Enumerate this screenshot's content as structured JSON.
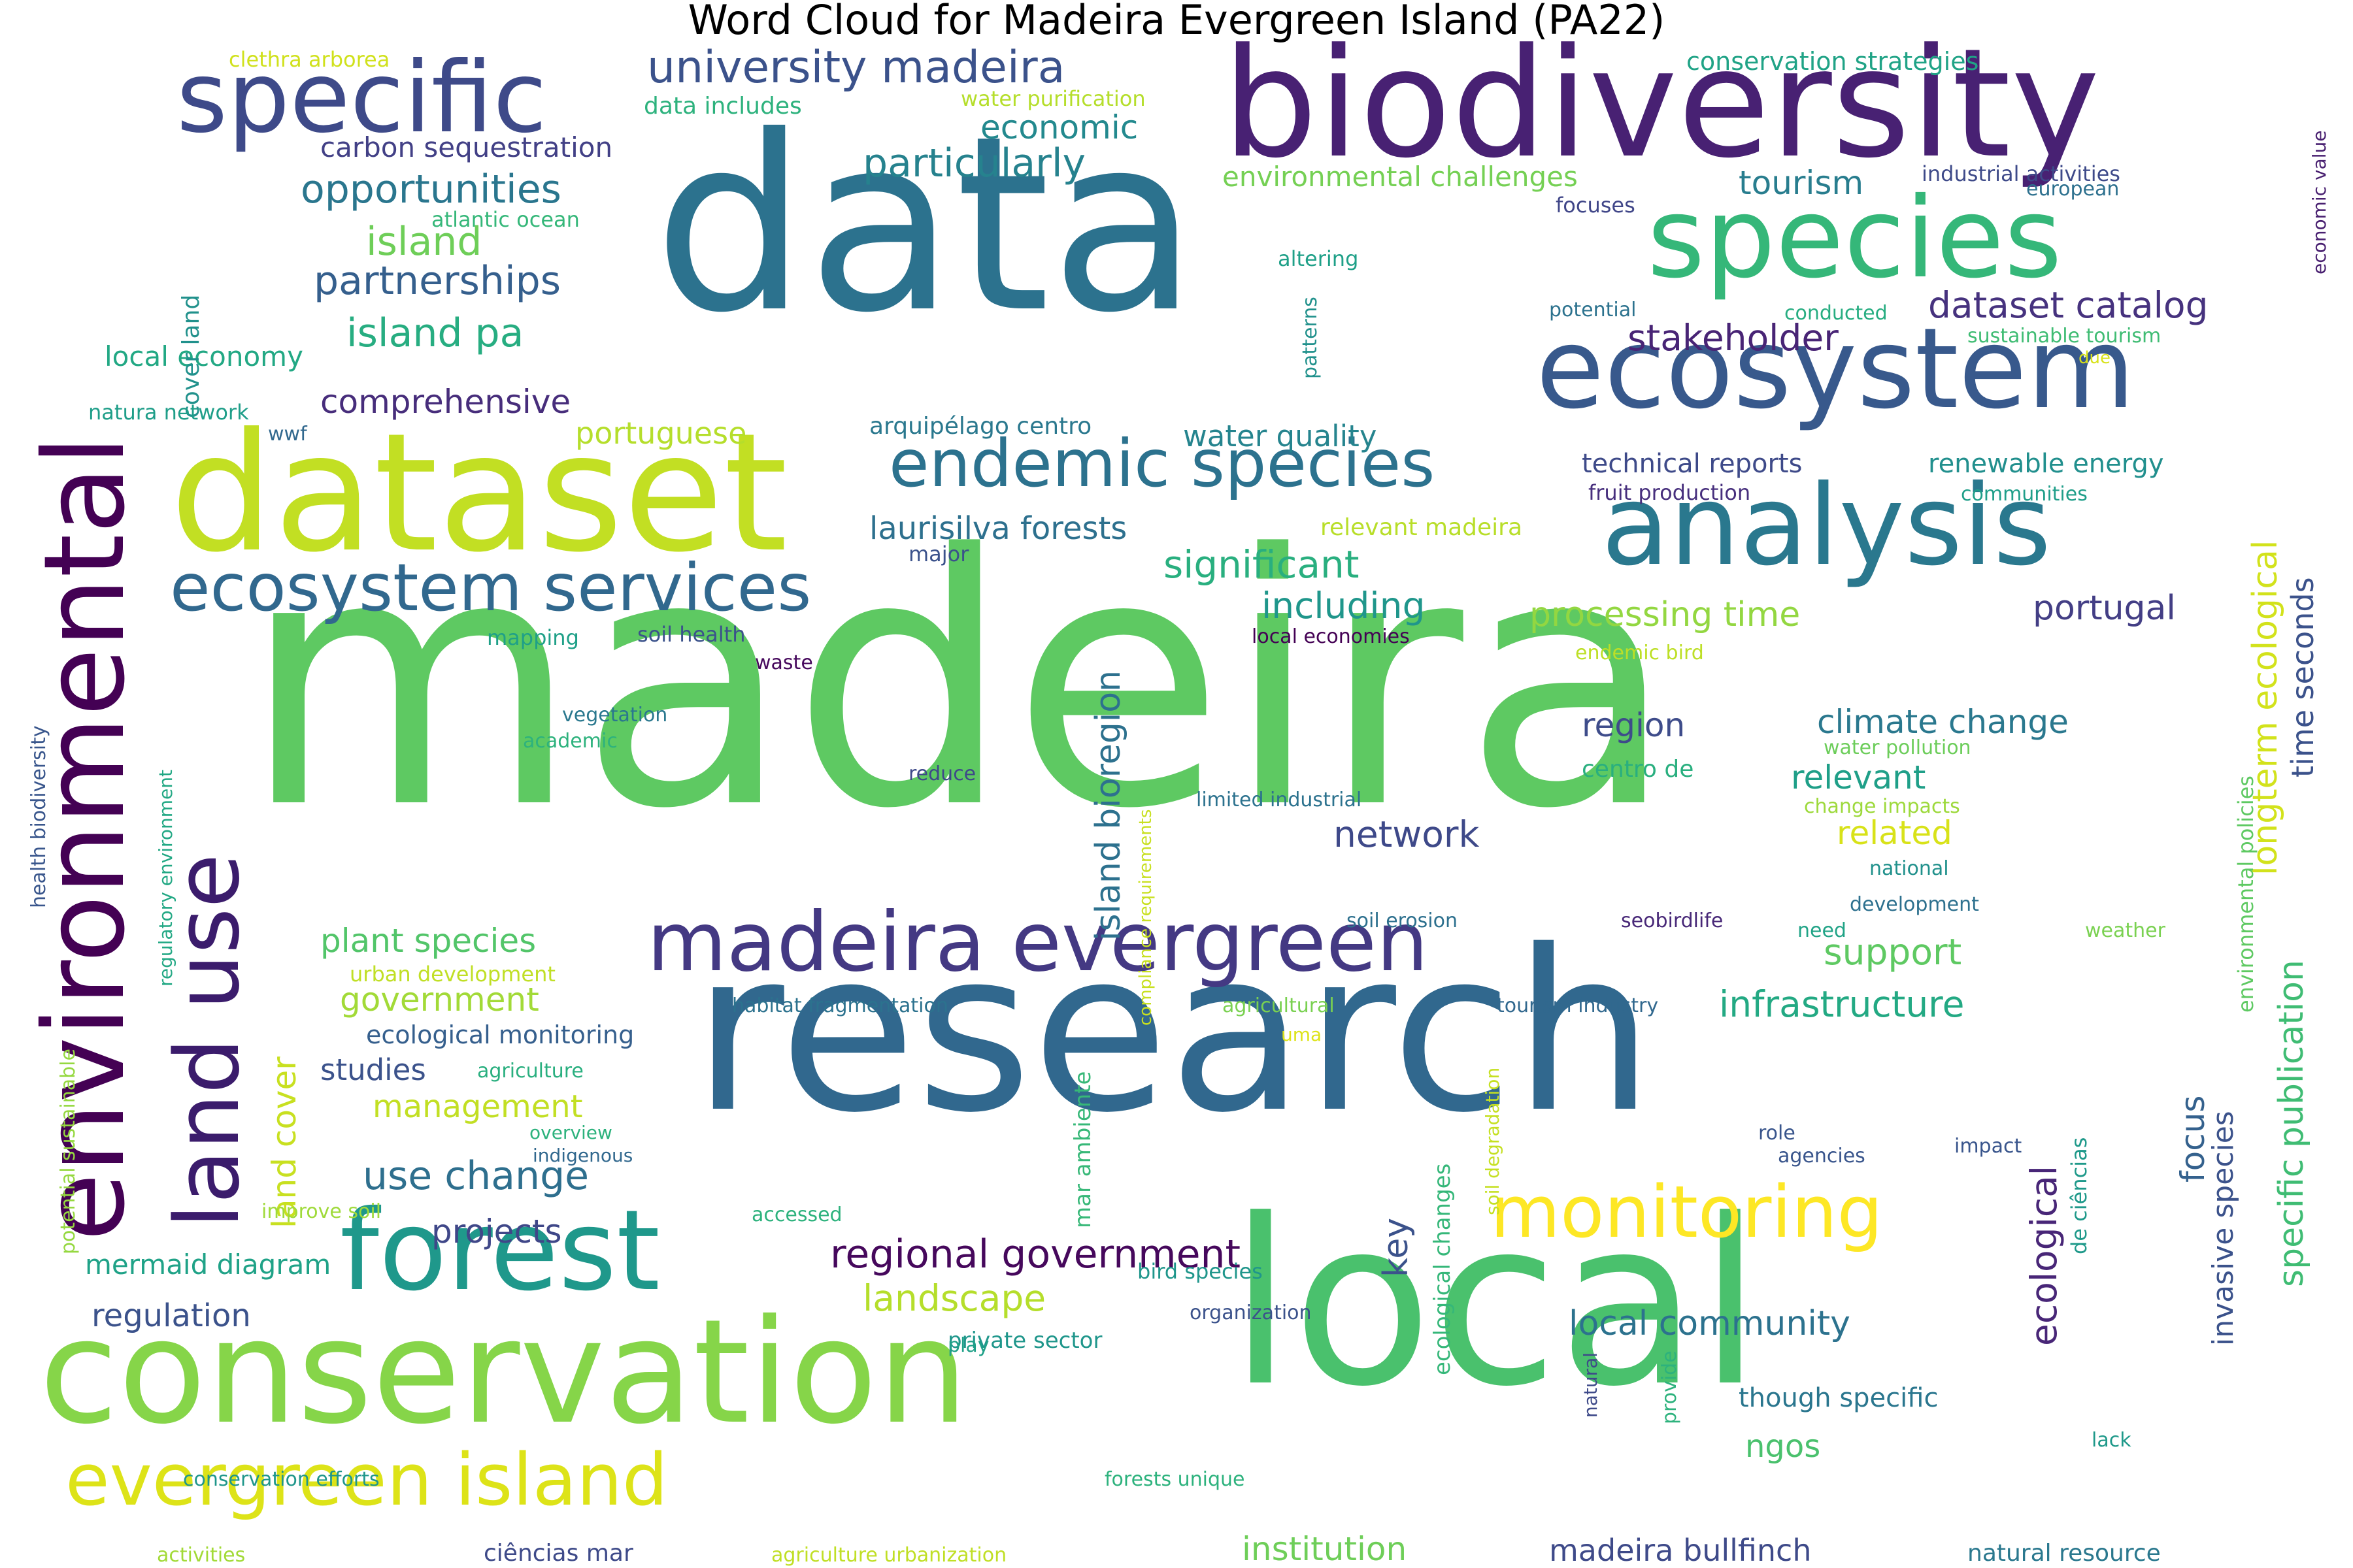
{
  "title": "Word Cloud for Madeira Evergreen Island (PA22)",
  "words": [
    {
      "text": "madeira",
      "color": "#5ec962"
    },
    {
      "text": "data",
      "color": "#2c728e"
    },
    {
      "text": "research",
      "color": "#31688e"
    },
    {
      "text": "local",
      "color": "#4ac16d"
    },
    {
      "text": "biodiversity",
      "color": "#482173"
    },
    {
      "text": "dataset",
      "color": "#c2df23"
    },
    {
      "text": "conservation",
      "color": "#86d549"
    },
    {
      "text": "environmental",
      "color": "#440154"
    },
    {
      "text": "specific",
      "color": "#3e4a89"
    },
    {
      "text": "species",
      "color": "#35b779"
    },
    {
      "text": "ecosystem",
      "color": "#38598c"
    },
    {
      "text": "analysis",
      "color": "#2a788e"
    },
    {
      "text": "forest",
      "color": "#1f988b"
    },
    {
      "text": "land use",
      "color": "#3b1c6c"
    },
    {
      "text": "madeira evergreen",
      "color": "#443983"
    },
    {
      "text": "evergreen island",
      "color": "#dde318"
    },
    {
      "text": "monitoring",
      "color": "#fde725"
    },
    {
      "text": "endemic species",
      "color": "#2c728e"
    },
    {
      "text": "ecosystem services",
      "color": "#31688e"
    },
    {
      "text": "university madeira",
      "color": "#3b528b"
    },
    {
      "text": "opportunities",
      "color": "#2a768e"
    },
    {
      "text": "partnerships",
      "color": "#355f8d"
    },
    {
      "text": "island pa",
      "color": "#27ad81"
    },
    {
      "text": "island",
      "color": "#6ece58"
    },
    {
      "text": "economic",
      "color": "#23898e"
    },
    {
      "text": "particularly",
      "color": "#26828e"
    },
    {
      "text": "tourism",
      "color": "#287d8e"
    },
    {
      "text": "dataset catalog",
      "color": "#46327e"
    },
    {
      "text": "stakeholder",
      "color": "#482475"
    },
    {
      "text": "comprehensive",
      "color": "#472d7b"
    },
    {
      "text": "portuguese",
      "color": "#b5de2b"
    },
    {
      "text": "local economy",
      "color": "#22a884"
    },
    {
      "text": "carbon sequestration",
      "color": "#424086"
    },
    {
      "text": "data includes",
      "color": "#2db27d"
    },
    {
      "text": "clethra arborea",
      "color": "#d0e11c"
    },
    {
      "text": "water purification",
      "color": "#b5de2b"
    },
    {
      "text": "conservation strategies",
      "color": "#20a386"
    },
    {
      "text": "environmental challenges",
      "color": "#75d054"
    },
    {
      "text": "industrial activities",
      "color": "#3e4a89"
    },
    {
      "text": "european",
      "color": "#2d708e"
    },
    {
      "text": "focuses",
      "color": "#404688"
    },
    {
      "text": "atlantic ocean",
      "color": "#35b779"
    },
    {
      "text": "cover land",
      "color": "#21918c"
    },
    {
      "text": "altering",
      "color": "#1fa088"
    },
    {
      "text": "patterns",
      "color": "#21918c"
    },
    {
      "text": "potential",
      "color": "#2c728e"
    },
    {
      "text": "conducted",
      "color": "#27ad81"
    },
    {
      "text": "sustainable tourism",
      "color": "#3fbc73"
    },
    {
      "text": "due",
      "color": "#d8e219"
    },
    {
      "text": "economic value",
      "color": "#481f70"
    },
    {
      "text": "natura network",
      "color": "#1f9e89"
    },
    {
      "text": "wwf",
      "color": "#31688e"
    },
    {
      "text": "arquipélago centro",
      "color": "#2a788e"
    },
    {
      "text": "water quality",
      "color": "#25848e"
    },
    {
      "text": "technical reports",
      "color": "#3e4a89"
    },
    {
      "text": "renewable energy",
      "color": "#218f8d"
    },
    {
      "text": "fruit production",
      "color": "#472f7d"
    },
    {
      "text": "communities",
      "color": "#1f9e89"
    },
    {
      "text": "laurisilva forests",
      "color": "#2d708e"
    },
    {
      "text": "relevant madeira",
      "color": "#b8de29"
    },
    {
      "text": "major",
      "color": "#3b528b"
    },
    {
      "text": "significant",
      "color": "#29af7f"
    },
    {
      "text": "including",
      "color": "#1f968b"
    },
    {
      "text": "processing time",
      "color": "#93d741"
    },
    {
      "text": "portugal",
      "color": "#433e85"
    },
    {
      "text": "island bioregion",
      "color": "#2d718e"
    },
    {
      "text": "longterm ecological",
      "color": "#d2e21b"
    },
    {
      "text": "time seconds",
      "color": "#3b528b"
    },
    {
      "text": "mapping",
      "color": "#1fa088"
    },
    {
      "text": "soil health",
      "color": "#3b528b"
    },
    {
      "text": "waste",
      "color": "#46085c"
    },
    {
      "text": "local economies",
      "color": "#440154"
    },
    {
      "text": "endemic bird",
      "color": "#bddf26"
    },
    {
      "text": "health biodiversity",
      "color": "#39568c"
    },
    {
      "text": "regulatory environment",
      "color": "#22a884"
    },
    {
      "text": "vegetation",
      "color": "#2a788e"
    },
    {
      "text": "academic",
      "color": "#2db27d"
    },
    {
      "text": "reduce",
      "color": "#3e4989"
    },
    {
      "text": "limited industrial",
      "color": "#2c728e"
    },
    {
      "text": "region",
      "color": "#3e4c8a"
    },
    {
      "text": "climate change",
      "color": "#2a788e"
    },
    {
      "text": "centro de",
      "color": "#29af7f"
    },
    {
      "text": "water pollution",
      "color": "#6ccd5a"
    },
    {
      "text": "relevant",
      "color": "#1f9f88"
    },
    {
      "text": "change impacts",
      "color": "#9dd93b"
    },
    {
      "text": "related",
      "color": "#d8e219"
    },
    {
      "text": "national",
      "color": "#21918c"
    },
    {
      "text": "network",
      "color": "#3e4989"
    },
    {
      "text": "environmental policies",
      "color": "#5ec962"
    },
    {
      "text": "plant species",
      "color": "#52c569"
    },
    {
      "text": "government",
      "color": "#a2da37"
    },
    {
      "text": "land cover",
      "color": "#c8e020"
    },
    {
      "text": "ecological monitoring",
      "color": "#355f8d"
    },
    {
      "text": "studies",
      "color": "#3b528b"
    },
    {
      "text": "agriculture",
      "color": "#29af7f"
    },
    {
      "text": "management",
      "color": "#c2df23"
    },
    {
      "text": "urban development",
      "color": "#c0df25"
    },
    {
      "text": "habitat fragmentation",
      "color": "#2c728e"
    },
    {
      "text": "agricultural",
      "color": "#7ad151"
    },
    {
      "text": "uma",
      "color": "#dde318"
    },
    {
      "text": "tourism industry",
      "color": "#31688e"
    },
    {
      "text": "compliance requirements",
      "color": "#c8e020"
    },
    {
      "text": "soil erosion",
      "color": "#2d708e"
    },
    {
      "text": "seobirdlife",
      "color": "#482878"
    },
    {
      "text": "need",
      "color": "#20a386"
    },
    {
      "text": "development",
      "color": "#2d708e"
    },
    {
      "text": "weather",
      "color": "#7ad151"
    },
    {
      "text": "support",
      "color": "#5ec962"
    },
    {
      "text": "infrastructure",
      "color": "#23a983"
    },
    {
      "text": "specific publication",
      "color": "#3fbc73"
    },
    {
      "text": "overview",
      "color": "#2db27d"
    },
    {
      "text": "indigenous",
      "color": "#31688e"
    },
    {
      "text": "use change",
      "color": "#2e6f8e"
    },
    {
      "text": "improve soil",
      "color": "#9fda3a"
    },
    {
      "text": "projects",
      "color": "#3f4788"
    },
    {
      "text": "potential sustainable",
      "color": "#95d840"
    },
    {
      "text": "mermaid diagram",
      "color": "#1fa287"
    },
    {
      "text": "regulation",
      "color": "#3b528b"
    },
    {
      "text": "mar ambiente",
      "color": "#37b878"
    },
    {
      "text": "soil degradation",
      "color": "#c5e021"
    },
    {
      "text": "accessed",
      "color": "#2db27d"
    },
    {
      "text": "role",
      "color": "#39558c"
    },
    {
      "text": "agencies",
      "color": "#39558c"
    },
    {
      "text": "impact",
      "color": "#39558c"
    },
    {
      "text": "de ciências",
      "color": "#1f998a"
    },
    {
      "text": "focus",
      "color": "#34618d"
    },
    {
      "text": "invasive species",
      "color": "#3b528b"
    },
    {
      "text": "ecological",
      "color": "#482677"
    },
    {
      "text": "regional government",
      "color": "#46085c"
    },
    {
      "text": "key",
      "color": "#3b528b"
    },
    {
      "text": "landscape",
      "color": "#b5de2b"
    },
    {
      "text": "bird species",
      "color": "#1f968b"
    },
    {
      "text": "organization",
      "color": "#3b528b"
    },
    {
      "text": "private sector",
      "color": "#1f968b"
    },
    {
      "text": "play",
      "color": "#1fa088"
    },
    {
      "text": "local community",
      "color": "#2c728e"
    },
    {
      "text": "ecological changes",
      "color": "#35b779"
    },
    {
      "text": "though specific",
      "color": "#2a768e"
    },
    {
      "text": "ngos",
      "color": "#4ac16d"
    },
    {
      "text": "provide",
      "color": "#2db27d"
    },
    {
      "text": "lack",
      "color": "#1f998a"
    },
    {
      "text": "natural",
      "color": "#3e4a89"
    },
    {
      "text": "forests unique",
      "color": "#2db27d"
    },
    {
      "text": "conservation efforts",
      "color": "#1f968b"
    },
    {
      "text": "activities",
      "color": "#a2da37"
    },
    {
      "text": "ciências mar",
      "color": "#3e4a89"
    },
    {
      "text": "agriculture urbanization",
      "color": "#c0df25"
    },
    {
      "text": "institution",
      "color": "#6ece58"
    },
    {
      "text": "madeira bullfinch",
      "color": "#3e4a89"
    },
    {
      "text": "natural resource",
      "color": "#2a788e"
    }
  ]
}
